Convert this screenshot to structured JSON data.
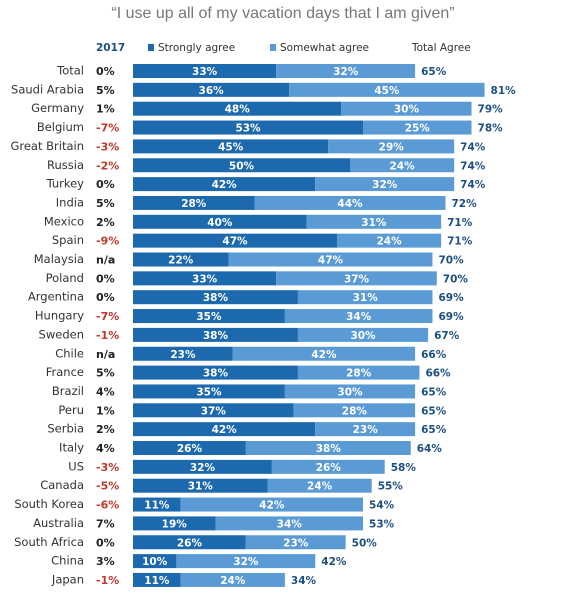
{
  "chart_data": {
    "type": "bar",
    "orientation": "horizontal",
    "stacked": true,
    "title": "“I use up all of my vacation days that I am given”",
    "categories": [
      "Total",
      "Saudi Arabia",
      "Germany",
      "Belgium",
      "Great Britain",
      "Russia",
      "Turkey",
      "India",
      "Mexico",
      "Spain",
      "Malaysia",
      "Poland",
      "Argentina",
      "Hungary",
      "Sweden",
      "Chile",
      "France",
      "Brazil",
      "Peru",
      "Serbia",
      "Italy",
      "US",
      "Canada",
      "South Korea",
      "Australia",
      "South Africa",
      "China",
      "Japan"
    ],
    "xlim": [
      0,
      100
    ],
    "series": [
      {
        "name": "Strongly agree",
        "color": "#1d69ad",
        "values": [
          33,
          36,
          48,
          53,
          45,
          50,
          42,
          28,
          40,
          47,
          22,
          33,
          38,
          35,
          38,
          23,
          38,
          35,
          37,
          42,
          26,
          32,
          31,
          11,
          19,
          26,
          10,
          11
        ],
        "value_labels": [
          "33%",
          "36%",
          "48%",
          "53%",
          "45%",
          "50%",
          "42%",
          "28%",
          "40%",
          "47%",
          "22%",
          "33%",
          "38%",
          "35%",
          "38%",
          "23%",
          "38%",
          "35%",
          "37%",
          "42%",
          "26%",
          "32%",
          "31%",
          "11%",
          "19%",
          "26%",
          "10%",
          "11%"
        ]
      },
      {
        "name": "Somewhat agree",
        "color": "#5b9bd5",
        "values": [
          32,
          45,
          30,
          25,
          29,
          24,
          32,
          44,
          31,
          24,
          47,
          37,
          31,
          34,
          30,
          42,
          28,
          30,
          28,
          23,
          38,
          26,
          24,
          42,
          34,
          23,
          32,
          24
        ],
        "value_labels": [
          "32%",
          "45%",
          "30%",
          "25%",
          "29%",
          "24%",
          "32%",
          "44%",
          "31%",
          "24%",
          "47%",
          "37%",
          "31%",
          "34%",
          "30%",
          "42%",
          "28%",
          "30%",
          "28%",
          "23%",
          "38%",
          "26%",
          "24%",
          "42%",
          "34%",
          "23%",
          "32%",
          "24%"
        ]
      }
    ],
    "total": {
      "name": "Total Agree",
      "values": [
        65,
        81,
        79,
        78,
        74,
        74,
        74,
        72,
        71,
        71,
        70,
        70,
        69,
        69,
        67,
        66,
        66,
        65,
        65,
        65,
        64,
        58,
        55,
        54,
        53,
        50,
        42,
        34
      ],
      "value_labels": [
        "65%",
        "81%",
        "79%",
        "78%",
        "74%",
        "74%",
        "74%",
        "72%",
        "71%",
        "71%",
        "70%",
        "70%",
        "69%",
        "69%",
        "67%",
        "66%",
        "66%",
        "65%",
        "65%",
        "65%",
        "64%",
        "58%",
        "55%",
        "54%",
        "53%",
        "50%",
        "42%",
        "34%"
      ]
    },
    "change": {
      "name": "2017",
      "values": [
        0,
        5,
        1,
        -7,
        -3,
        -2,
        0,
        5,
        2,
        -9,
        null,
        0,
        0,
        -7,
        -1,
        null,
        5,
        4,
        1,
        2,
        4,
        -3,
        -5,
        -6,
        7,
        0,
        3,
        -1
      ],
      "value_labels": [
        "0%",
        "5%",
        "1%",
        "-7%",
        "-3%",
        "-2%",
        "0%",
        "5%",
        "2%",
        "-9%",
        "n/a",
        "0%",
        "0%",
        "-7%",
        "-1%",
        "n/a",
        "5%",
        "4%",
        "1%",
        "2%",
        "4%",
        "-3%",
        "-5%",
        "-6%",
        "7%",
        "0%",
        "3%",
        "-1%"
      ]
    }
  }
}
